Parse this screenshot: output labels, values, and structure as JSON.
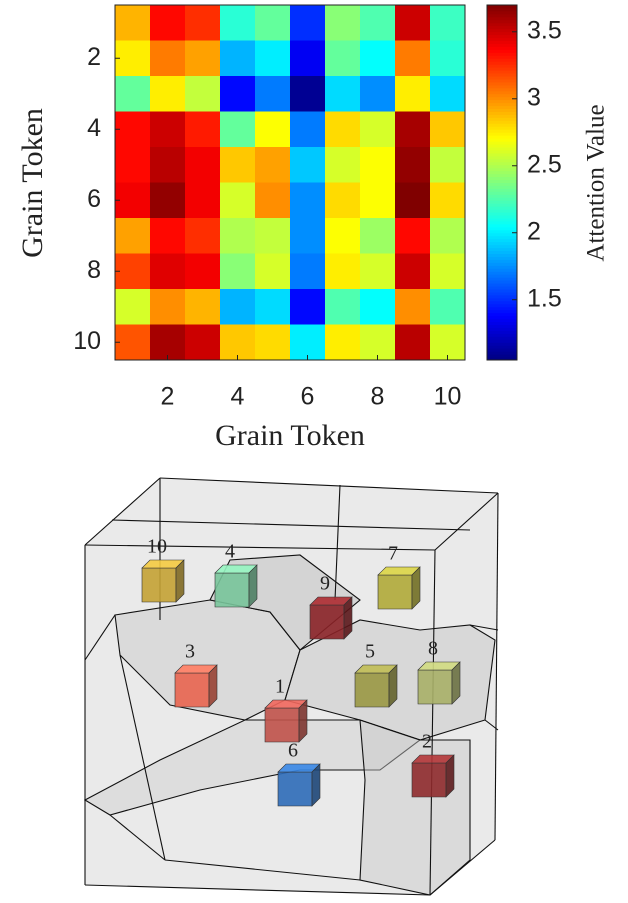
{
  "chart_data": {
    "type": "heatmap",
    "x_label": "Grain Token",
    "y_label": "Grain Token",
    "colorbar_label": "Attention Value",
    "colormap": "jet",
    "x": [
      1,
      2,
      3,
      4,
      5,
      6,
      7,
      8,
      9,
      10
    ],
    "y": [
      1,
      2,
      3,
      4,
      5,
      6,
      7,
      8,
      9,
      10
    ],
    "y_reversed": true,
    "values": [
      [
        2.9,
        3.35,
        3.25,
        2.15,
        2.3,
        1.5,
        2.4,
        2.25,
        3.5,
        2.2
      ],
      [
        2.75,
        3.05,
        2.95,
        1.85,
        2.0,
        1.35,
        2.3,
        2.05,
        3.05,
        2.15
      ],
      [
        2.3,
        2.75,
        2.55,
        1.4,
        1.7,
        1.1,
        1.95,
        1.75,
        2.75,
        1.95
      ],
      [
        3.35,
        3.5,
        3.3,
        2.3,
        2.7,
        1.7,
        2.8,
        2.6,
        3.6,
        2.85
      ],
      [
        3.35,
        3.55,
        3.4,
        2.85,
        2.95,
        1.9,
        2.6,
        2.7,
        3.65,
        2.55
      ],
      [
        3.4,
        3.65,
        3.4,
        2.6,
        3.0,
        1.75,
        2.8,
        2.7,
        3.7,
        2.8
      ],
      [
        2.95,
        3.35,
        3.25,
        2.5,
        2.55,
        1.75,
        2.7,
        2.45,
        3.35,
        2.5
      ],
      [
        3.2,
        3.45,
        3.4,
        2.4,
        2.6,
        1.7,
        2.75,
        2.6,
        3.5,
        2.6
      ],
      [
        2.6,
        3.0,
        2.9,
        1.85,
        1.95,
        1.4,
        2.25,
        2.05,
        3.0,
        2.25
      ],
      [
        3.15,
        3.6,
        3.5,
        2.85,
        2.8,
        2.0,
        2.75,
        2.6,
        3.55,
        2.6
      ]
    ],
    "xlim": [
      0.5,
      10.5
    ],
    "ylim": [
      0.5,
      10.5
    ],
    "xticks": [
      2,
      4,
      6,
      8,
      10
    ],
    "yticks": [
      2,
      4,
      6,
      8,
      10
    ],
    "zlim": [
      1.05,
      3.7
    ],
    "zticks": [
      1.5,
      2,
      2.5,
      3,
      3.5
    ]
  },
  "diagram": {
    "grain_labels": [
      "1",
      "2",
      "3",
      "4",
      "5",
      "6",
      "7",
      "8",
      "9",
      "10"
    ]
  }
}
